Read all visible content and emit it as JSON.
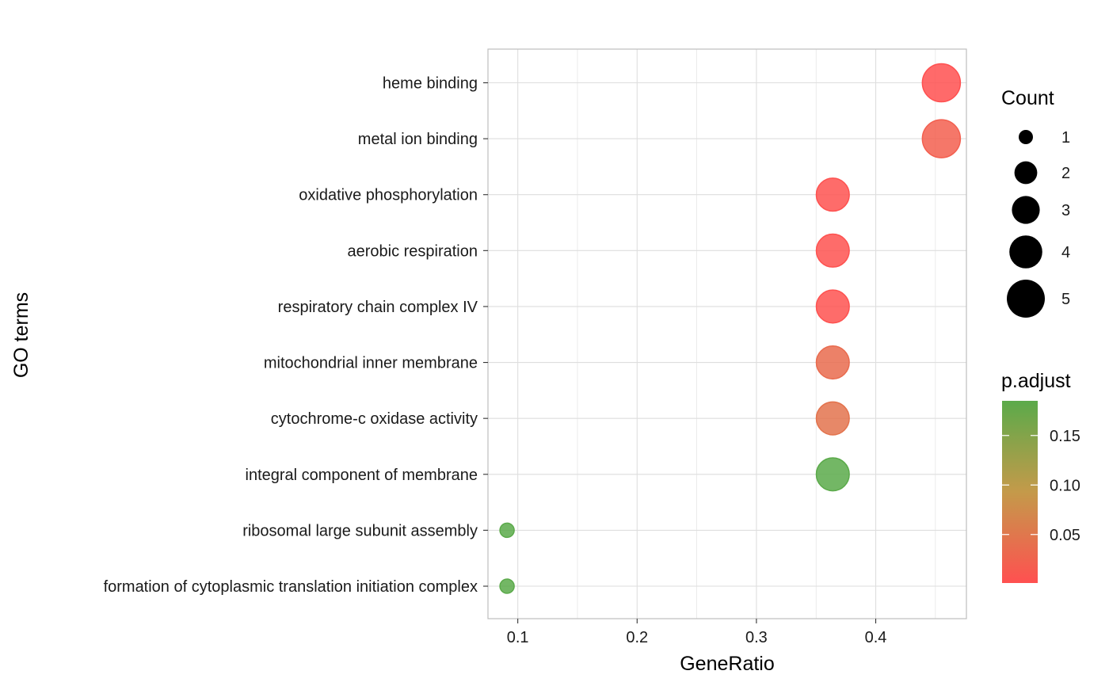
{
  "chart_data": {
    "type": "scatter",
    "xlabel": "GeneRatio",
    "ylabel": "GO terms",
    "xlim": [
      0.075,
      0.476
    ],
    "xticks": [
      0.1,
      0.2,
      0.3,
      0.4
    ],
    "xtick_labels": [
      "0.1",
      "0.2",
      "0.3",
      "0.4"
    ],
    "grid": true,
    "legend_placement": "right",
    "points": [
      {
        "term": "heme binding",
        "gene_ratio": 0.455,
        "count": 5,
        "p_adjust": 0.001
      },
      {
        "term": "metal ion binding",
        "gene_ratio": 0.455,
        "count": 5,
        "p_adjust": 0.02
      },
      {
        "term": "oxidative phosphorylation",
        "gene_ratio": 0.364,
        "count": 4,
        "p_adjust": 0.003
      },
      {
        "term": "aerobic respiration",
        "gene_ratio": 0.364,
        "count": 4,
        "p_adjust": 0.003
      },
      {
        "term": "respiratory chain complex IV",
        "gene_ratio": 0.364,
        "count": 4,
        "p_adjust": 0.003
      },
      {
        "term": "mitochondrial inner membrane",
        "gene_ratio": 0.364,
        "count": 4,
        "p_adjust": 0.035
      },
      {
        "term": "cytochrome-c oxidase activity",
        "gene_ratio": 0.364,
        "count": 4,
        "p_adjust": 0.045
      },
      {
        "term": "integral component of membrane",
        "gene_ratio": 0.364,
        "count": 4,
        "p_adjust": 0.185
      },
      {
        "term": "ribosomal large subunit assembly",
        "gene_ratio": 0.091,
        "count": 1,
        "p_adjust": 0.185
      },
      {
        "term": "formation of cytoplasmic translation initiation complex",
        "gene_ratio": 0.091,
        "count": 1,
        "p_adjust": 0.185
      }
    ],
    "size_legend": {
      "title": "Count",
      "items": [
        {
          "value": 1,
          "label": "1"
        },
        {
          "value": 2,
          "label": "2"
        },
        {
          "value": 3,
          "label": "3"
        },
        {
          "value": 4,
          "label": "4"
        },
        {
          "value": 5,
          "label": "5"
        }
      ]
    },
    "color_legend": {
      "title": "p.adjust",
      "range": [
        0.001,
        0.185
      ],
      "ticks": [
        0.05,
        0.1,
        0.15
      ],
      "tick_labels": [
        "0.05",
        "0.10",
        "0.15"
      ],
      "low_color": "#FF5050",
      "mid_color": "#C49A4A",
      "high_color": "#5BAA4A",
      "low_meaning": "red = small p.adjust",
      "point_alpha": 0.85
    },
    "colors": {
      "grid": "#DEDEDE",
      "panel_border": "#BEBEBE",
      "point_stroke_alpha": 0.9
    }
  }
}
